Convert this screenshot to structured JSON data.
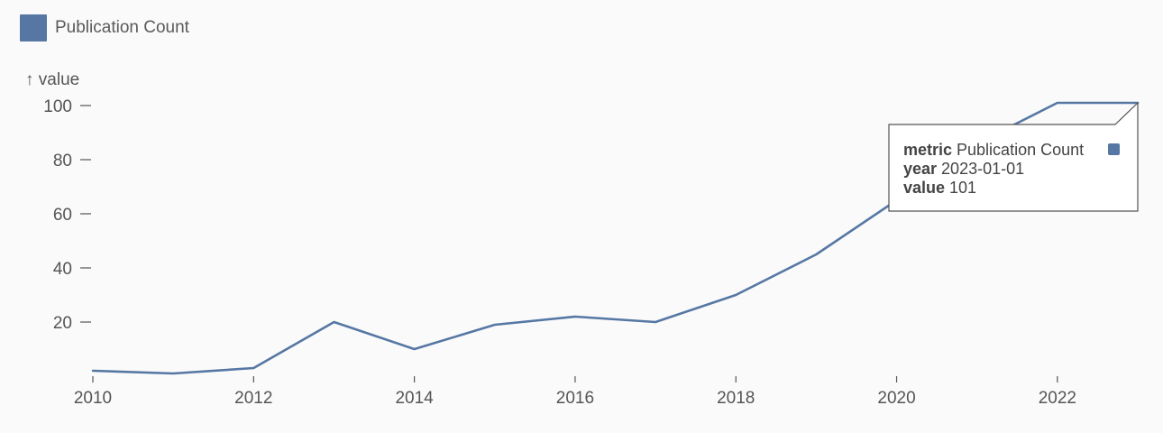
{
  "legend": {
    "label": "Publication Count",
    "color": "#5677a4"
  },
  "chart_data": {
    "type": "line",
    "ylabel": "↑ value",
    "xlabel": "",
    "x": [
      2010,
      2011,
      2012,
      2013,
      2014,
      2015,
      2016,
      2017,
      2018,
      2019,
      2020,
      2021,
      2022,
      2023
    ],
    "series": [
      {
        "name": "Publication Count",
        "color": "#5677a4",
        "values": [
          2,
          1,
          3,
          20,
          10,
          19,
          22,
          20,
          30,
          45,
          65,
          86,
          101,
          101
        ]
      }
    ],
    "xlim": [
      2010,
      2023
    ],
    "ylim": [
      0,
      100
    ],
    "x_ticks": [
      2010,
      2012,
      2014,
      2016,
      2018,
      2020,
      2022
    ],
    "y_ticks": [
      20,
      40,
      60,
      80,
      100
    ],
    "grid": false
  },
  "tooltip": {
    "rows": [
      {
        "key": "metric",
        "value": "Publication Count"
      },
      {
        "key": "year",
        "value": "2023-01-01"
      },
      {
        "key": "value",
        "value": "101"
      }
    ],
    "swatch_color": "#5677a4"
  }
}
